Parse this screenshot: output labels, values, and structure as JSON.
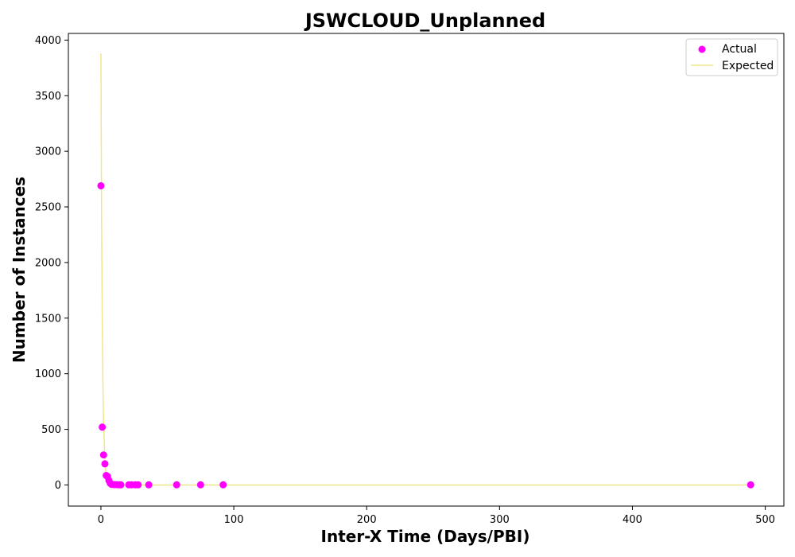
{
  "chart_data": {
    "type": "scatter",
    "title": "JSWCLOUD_Unplanned",
    "xlabel": "Inter-X Time (Days/PBI)",
    "ylabel": "Number of Instances",
    "xlim": [
      -24.5,
      514
    ],
    "ylim": [
      -190,
      4060
    ],
    "xticks": [
      0,
      100,
      200,
      300,
      400,
      500
    ],
    "yticks": [
      0,
      500,
      1000,
      1500,
      2000,
      2500,
      3000,
      3500,
      4000
    ],
    "grid": false,
    "legend_position": "top-right",
    "series": [
      {
        "name": "Actual",
        "kind": "scatter",
        "color": "#ff00ff",
        "points": [
          [
            0,
            2690
          ],
          [
            1,
            520
          ],
          [
            2,
            270
          ],
          [
            3,
            190
          ],
          [
            4,
            85
          ],
          [
            5,
            75
          ],
          [
            6,
            40
          ],
          [
            7,
            15
          ],
          [
            8,
            5
          ],
          [
            10,
            3
          ],
          [
            12,
            2
          ],
          [
            14,
            1
          ],
          [
            15,
            1
          ],
          [
            21,
            1
          ],
          [
            23,
            1
          ],
          [
            26,
            1
          ],
          [
            28,
            1
          ],
          [
            36,
            1
          ],
          [
            57,
            1
          ],
          [
            75,
            1
          ],
          [
            92,
            1
          ],
          [
            489,
            1
          ]
        ]
      },
      {
        "name": "Expected",
        "kind": "line",
        "color": "#f0e68c",
        "points": [
          [
            0,
            3880
          ],
          [
            0.5,
            2400
          ],
          [
            1,
            1480
          ],
          [
            1.5,
            915
          ],
          [
            2,
            565
          ],
          [
            3,
            215
          ],
          [
            4,
            82
          ],
          [
            5,
            31
          ],
          [
            6,
            12
          ],
          [
            8,
            2
          ],
          [
            10,
            0.3
          ],
          [
            15,
            0
          ],
          [
            489,
            0
          ]
        ]
      }
    ]
  }
}
